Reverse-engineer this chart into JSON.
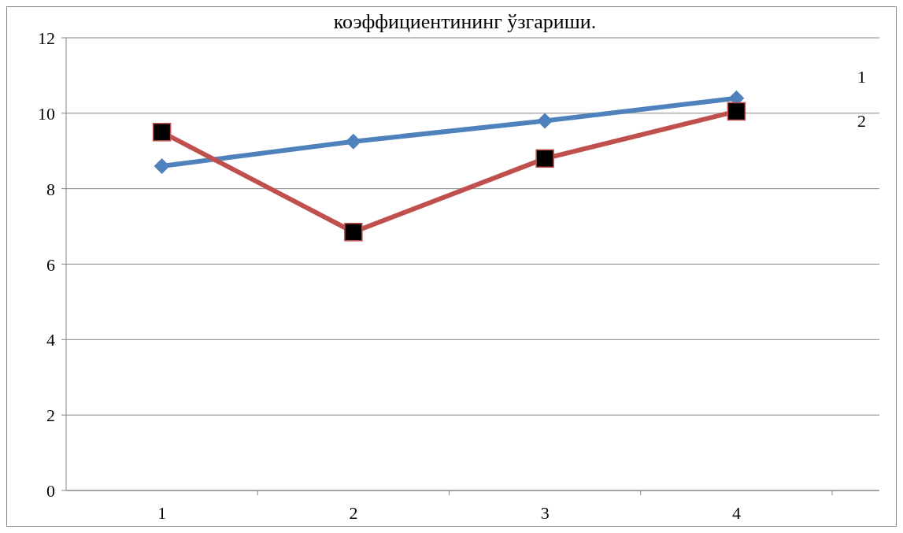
{
  "chart_data": {
    "type": "line",
    "title": "коэффициентининг ўзгариши.",
    "categories": [
      "1",
      "2",
      "3",
      "4"
    ],
    "series": [
      {
        "name": "1",
        "color": "#4f81bd",
        "marker": "diamond",
        "values": [
          8.6,
          9.25,
          9.8,
          10.4
        ]
      },
      {
        "name": "2",
        "color": "#c0504d",
        "marker": "square",
        "values": [
          9.5,
          6.85,
          8.8,
          10.05
        ]
      }
    ],
    "ylim": [
      0,
      12
    ],
    "yticks": [
      0,
      2,
      4,
      6,
      8,
      10,
      12
    ],
    "grid": "y"
  }
}
